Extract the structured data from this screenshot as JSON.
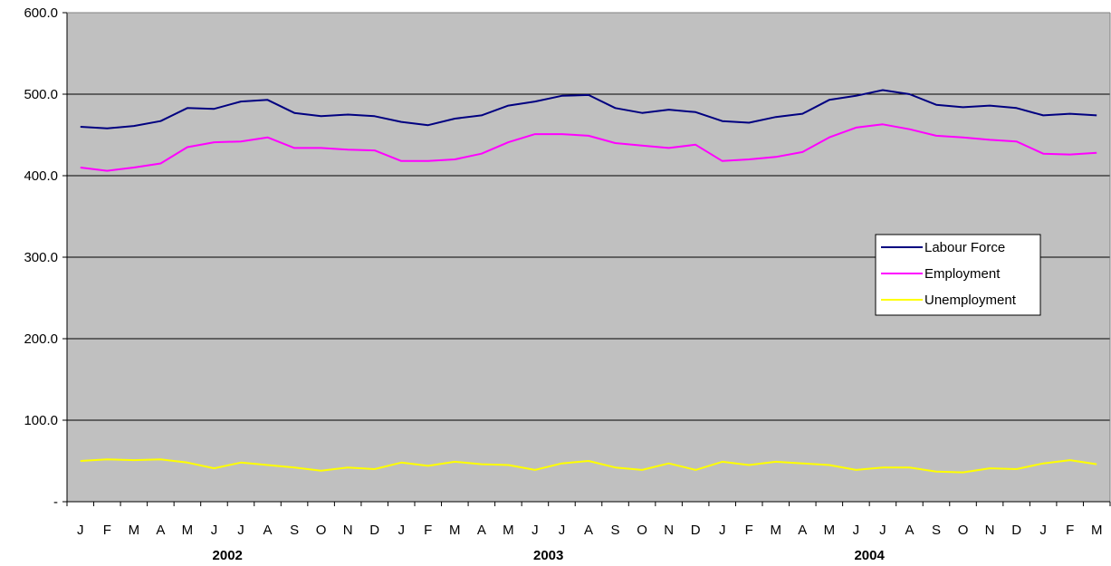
{
  "chart_data": {
    "type": "line",
    "title": "",
    "xlabel": "",
    "ylabel": "",
    "ylim": [
      0,
      600
    ],
    "y_ticks": [
      "-",
      "100.0",
      "200.0",
      "300.0",
      "400.0",
      "500.0",
      "600.0"
    ],
    "grid": "horizontal",
    "legend_position": "right",
    "plot_background": "#c0c0c0",
    "categories": [
      "J",
      "F",
      "M",
      "A",
      "M",
      "J",
      "J",
      "A",
      "S",
      "O",
      "N",
      "D",
      "J",
      "F",
      "M",
      "A",
      "M",
      "J",
      "J",
      "A",
      "S",
      "O",
      "N",
      "D",
      "J",
      "F",
      "M",
      "A",
      "M",
      "J",
      "J",
      "A",
      "S",
      "O",
      "N",
      "D",
      "J",
      "F",
      "M"
    ],
    "years": [
      {
        "label": "2002",
        "start": 0,
        "end": 11
      },
      {
        "label": "2003",
        "start": 12,
        "end": 23
      },
      {
        "label": "2004",
        "start": 24,
        "end": 35
      }
    ],
    "series": [
      {
        "name": "Labour Force",
        "color": "#000080",
        "values": [
          460,
          458,
          461,
          467,
          483,
          482,
          491,
          493,
          477,
          473,
          475,
          473,
          466,
          462,
          470,
          474,
          486,
          491,
          498,
          499,
          483,
          477,
          481,
          478,
          467,
          465,
          472,
          476,
          493,
          498,
          505,
          500,
          487,
          484,
          486,
          483,
          474,
          476,
          474
        ]
      },
      {
        "name": "Employment",
        "color": "#ff00ff",
        "values": [
          410,
          406,
          410,
          415,
          435,
          441,
          442,
          447,
          434,
          434,
          432,
          431,
          418,
          418,
          420,
          427,
          441,
          451,
          451,
          449,
          440,
          437,
          434,
          438,
          418,
          420,
          423,
          429,
          447,
          459,
          463,
          457,
          449,
          447,
          444,
          442,
          427,
          426,
          428
        ]
      },
      {
        "name": "Unemployment",
        "color": "#ffff00",
        "values": [
          50,
          52,
          51,
          52,
          48,
          41,
          48,
          45,
          42,
          38,
          42,
          40,
          48,
          44,
          49,
          46,
          45,
          39,
          47,
          50,
          42,
          39,
          47,
          39,
          49,
          45,
          49,
          47,
          45,
          39,
          42,
          42,
          37,
          36,
          41,
          40,
          47,
          51,
          46
        ]
      }
    ]
  }
}
